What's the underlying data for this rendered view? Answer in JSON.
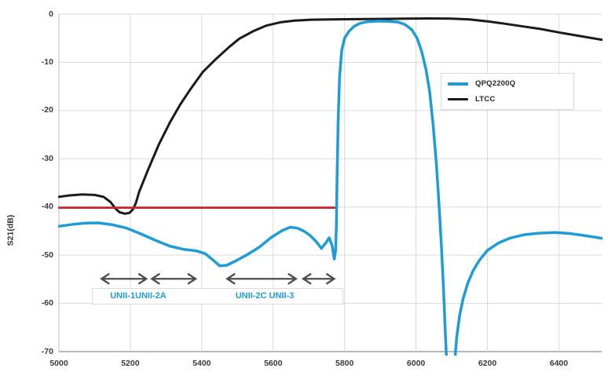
{
  "chart_data": {
    "type": "line",
    "title": "",
    "xlabel": "",
    "ylabel": "S21(dB)",
    "xlim": [
      5000,
      6520
    ],
    "ylim": [
      -70,
      0
    ],
    "x_ticks": [
      5000,
      5200,
      5400,
      5600,
      5800,
      6000,
      6200,
      6400
    ],
    "y_ticks": [
      0,
      -10,
      -20,
      -30,
      -40,
      -50,
      -60,
      -70
    ],
    "grid": true,
    "colors": {
      "qpq_blue": "#1E9CD7",
      "ltcc_black": "#1B1B1B",
      "limit_red": "#C9252C",
      "gridline": "#d9d9d9",
      "axis_left": "#bfbfbf",
      "axis_bottom": "#a0a0a0",
      "arrow_gray": "#4d4d4d"
    },
    "legend": {
      "position": "inside-right",
      "entries": [
        {
          "label": "QPQ2200Q",
          "color": "#1E9CD7"
        },
        {
          "label": "LTCC",
          "color": "#1B1B1B"
        }
      ]
    },
    "series": [
      {
        "name": "LTCC",
        "color": "#1B1B1B",
        "width": 3,
        "in_legend": true,
        "points": [
          [
            5000,
            -37.9
          ],
          [
            5030,
            -37.6
          ],
          [
            5065,
            -37.4
          ],
          [
            5100,
            -37.5
          ],
          [
            5125,
            -37.9
          ],
          [
            5145,
            -39.0
          ],
          [
            5158,
            -40.3
          ],
          [
            5170,
            -41.1
          ],
          [
            5185,
            -41.4
          ],
          [
            5198,
            -41.2
          ],
          [
            5207,
            -40.5
          ],
          [
            5215,
            -39.3
          ],
          [
            5225,
            -36.8
          ],
          [
            5250,
            -32.2
          ],
          [
            5280,
            -27.0
          ],
          [
            5310,
            -22.6
          ],
          [
            5340,
            -18.7
          ],
          [
            5370,
            -15.4
          ],
          [
            5403,
            -12.0
          ],
          [
            5440,
            -9.3
          ],
          [
            5477,
            -6.8
          ],
          [
            5505,
            -5.1
          ],
          [
            5545,
            -3.5
          ],
          [
            5580,
            -2.4
          ],
          [
            5620,
            -1.7
          ],
          [
            5660,
            -1.35
          ],
          [
            5705,
            -1.15
          ],
          [
            5760,
            -1.1
          ],
          [
            5830,
            -1.05
          ],
          [
            5900,
            -1.0
          ],
          [
            5970,
            -0.95
          ],
          [
            6040,
            -0.9
          ],
          [
            6100,
            -0.92
          ],
          [
            6150,
            -1.1
          ],
          [
            6200,
            -1.5
          ],
          [
            6250,
            -2.0
          ],
          [
            6300,
            -2.55
          ],
          [
            6350,
            -3.1
          ],
          [
            6400,
            -3.8
          ],
          [
            6455,
            -4.5
          ],
          [
            6520,
            -5.3
          ]
        ]
      },
      {
        "name": "limit_-40dB",
        "color": "#C9252C",
        "width": 2.8,
        "in_legend": false,
        "points": [
          [
            5000,
            -40.15
          ],
          [
            5779,
            -40.15
          ]
        ]
      },
      {
        "name": "QPQ2200Q",
        "color": "#1E9CD7",
        "width": 3.5,
        "in_legend": true,
        "points": [
          [
            5000,
            -44.0
          ],
          [
            5040,
            -43.6
          ],
          [
            5075,
            -43.35
          ],
          [
            5110,
            -43.3
          ],
          [
            5150,
            -43.7
          ],
          [
            5190,
            -44.4
          ],
          [
            5230,
            -45.6
          ],
          [
            5270,
            -46.9
          ],
          [
            5310,
            -48.1
          ],
          [
            5350,
            -48.8
          ],
          [
            5385,
            -49.1
          ],
          [
            5410,
            -49.7
          ],
          [
            5430,
            -50.9
          ],
          [
            5450,
            -52.2
          ],
          [
            5470,
            -52.1
          ],
          [
            5495,
            -51.2
          ],
          [
            5525,
            -50.0
          ],
          [
            5560,
            -48.4
          ],
          [
            5595,
            -46.3
          ],
          [
            5625,
            -44.9
          ],
          [
            5648,
            -44.2
          ],
          [
            5668,
            -44.4
          ],
          [
            5688,
            -45.1
          ],
          [
            5705,
            -46.0
          ],
          [
            5722,
            -47.3
          ],
          [
            5735,
            -48.6
          ],
          [
            5748,
            -47.4
          ],
          [
            5757,
            -46.4
          ],
          [
            5765,
            -48.0
          ],
          [
            5771,
            -50.8
          ],
          [
            5775,
            -49.0
          ],
          [
            5777,
            -44.0
          ],
          [
            5779,
            -34.0
          ],
          [
            5782,
            -22.0
          ],
          [
            5786,
            -13.0
          ],
          [
            5792,
            -7.5
          ],
          [
            5800,
            -5.0
          ],
          [
            5812,
            -3.6
          ],
          [
            5827,
            -2.5
          ],
          [
            5843,
            -1.9
          ],
          [
            5862,
            -1.6
          ],
          [
            5895,
            -1.45
          ],
          [
            5925,
            -1.5
          ],
          [
            5950,
            -1.65
          ],
          [
            5970,
            -2.2
          ],
          [
            5988,
            -3.2
          ],
          [
            6003,
            -5.0
          ],
          [
            6016,
            -7.8
          ],
          [
            6028,
            -11.5
          ],
          [
            6038,
            -16.0
          ],
          [
            6048,
            -23.0
          ],
          [
            6057,
            -31.0
          ],
          [
            6064,
            -39.0
          ],
          [
            6071,
            -48.0
          ],
          [
            6077,
            -57.0
          ],
          [
            6082,
            -66.0
          ],
          [
            6086,
            -72.5
          ],
          [
            6108,
            -72.5
          ],
          [
            6114,
            -67.0
          ],
          [
            6122,
            -62.5
          ],
          [
            6132,
            -59.0
          ],
          [
            6145,
            -55.8
          ],
          [
            6160,
            -53.2
          ],
          [
            6178,
            -51.0
          ],
          [
            6200,
            -49.0
          ],
          [
            6230,
            -47.5
          ],
          [
            6262,
            -46.5
          ],
          [
            6300,
            -45.8
          ],
          [
            6340,
            -45.45
          ],
          [
            6390,
            -45.3
          ],
          [
            6430,
            -45.5
          ],
          [
            6470,
            -45.9
          ],
          [
            6520,
            -46.5
          ]
        ]
      }
    ],
    "annotations": {
      "arrows": [
        {
          "name": "unii-1",
          "from_mhz": 5117,
          "to_mhz": 5247,
          "level_db": -54.9
        },
        {
          "name": "unii-2a",
          "from_mhz": 5258,
          "to_mhz": 5385,
          "level_db": -54.9
        },
        {
          "name": "unii-2c",
          "from_mhz": 5469,
          "to_mhz": 5666,
          "level_db": -54.9
        },
        {
          "name": "unii-3",
          "from_mhz": 5682,
          "to_mhz": 5773,
          "level_db": -54.9
        }
      ],
      "band_labels": [
        {
          "text": "UNII-1UNII-2A",
          "center_mhz": 5220,
          "color": "#1E9CD7"
        },
        {
          "text": "UNII-2C UNII-3",
          "center_mhz": 5574,
          "color": "#1E9CD7"
        }
      ]
    }
  }
}
